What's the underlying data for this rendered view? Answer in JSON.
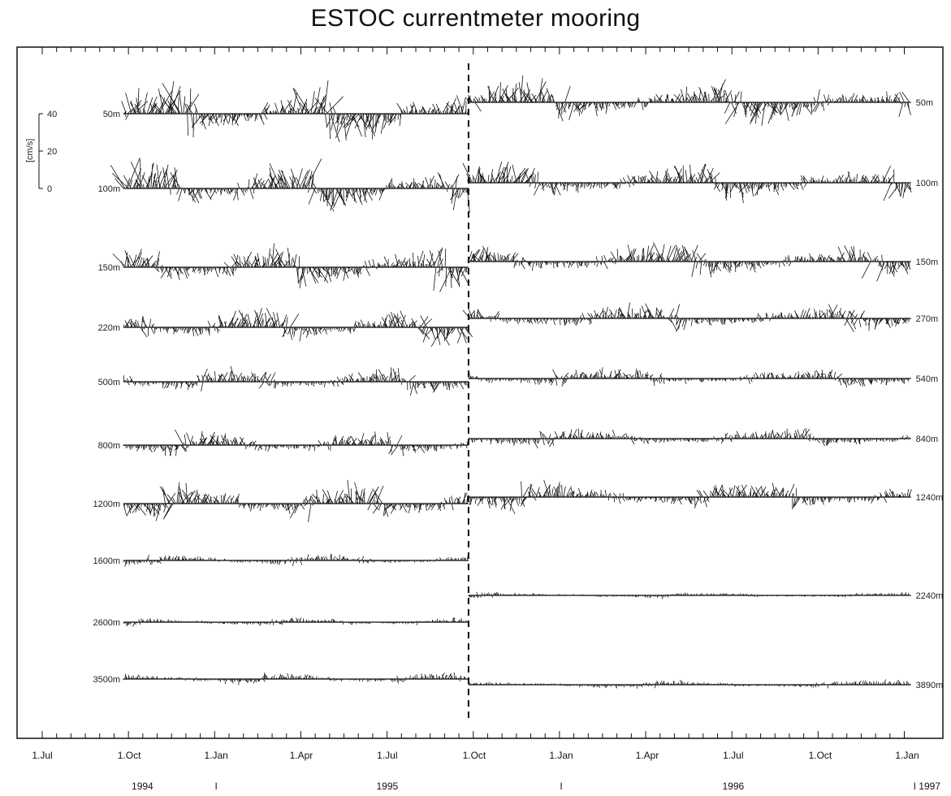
{
  "chart_data": {
    "type": "line",
    "title": "ESTOC currentmeter mooring",
    "scale_bar": {
      "ticks": [
        "40",
        "20",
        "0"
      ],
      "unit_label": "[cm/s]"
    },
    "x_ticks": [
      "1.Jul",
      "1.Oct",
      "1.Jan",
      "1.Apr",
      "1.Jul",
      "1.Oct",
      "1.Jan",
      "1.Apr",
      "1.Jul",
      "1.Oct",
      "1.Jan"
    ],
    "x_tick_dates": [
      "1994-07-01",
      "1994-10-01",
      "1995-01-01",
      "1995-04-01",
      "1995-07-01",
      "1995-10-01",
      "1996-01-01",
      "1996-04-01",
      "1996-07-01",
      "1996-10-01",
      "1997-01-01"
    ],
    "year_labels": [
      {
        "text": "1994",
        "date": "1994-10-15"
      },
      {
        "text": "I",
        "date": "1995-01-01"
      },
      {
        "text": "1995",
        "date": "1995-07-01"
      },
      {
        "text": "I",
        "date": "1996-01-01"
      },
      {
        "text": "1996",
        "date": "1996-07-01"
      },
      {
        "text": "I 1997",
        "date": "1997-01-01"
      }
    ],
    "deployment_change_date": "1995-09-25",
    "deployments": [
      {
        "period": [
          "1994-09-25",
          "1995-09-25"
        ],
        "depths": [
          "50m",
          "100m",
          "150m",
          "220m",
          "500m",
          "800m",
          "1200m",
          "1600m",
          "2600m",
          "3500m"
        ]
      },
      {
        "period": [
          "1995-09-25",
          "1997-01-05"
        ],
        "depths": [
          "50m",
          "100m",
          "150m",
          "270m",
          "540m",
          "840m",
          "1240m",
          "2240m",
          "3890m"
        ]
      }
    ],
    "grid": false,
    "legend": "none"
  }
}
